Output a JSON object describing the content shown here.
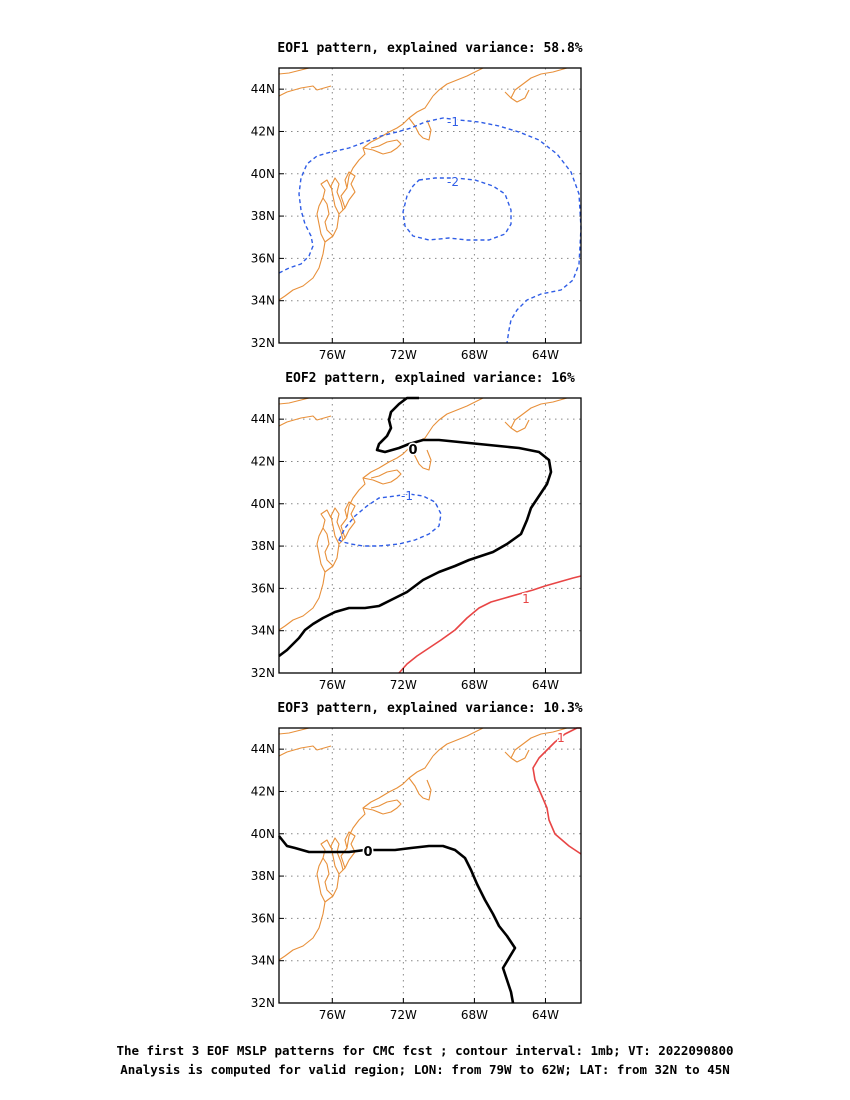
{
  "figure": {
    "caption_line1": "The first 3 EOF MSLP patterns for CMC fcst ; contour interval: 1mb; VT: 2022090800",
    "caption_line2": "Analysis is computed for valid region; LON: from 79W to 62W; LAT: from 32N to 45N"
  },
  "colors": {
    "coastline": "#e8903a",
    "negative_contour": "#2f5de6",
    "zero_contour": "#000000",
    "positive_contour": "#e84545",
    "grid": "#888888"
  },
  "chart_data": [
    {
      "type": "contour-map",
      "title": "EOF1 pattern, explained variance: 58.8%",
      "xlim": [
        -79,
        -62
      ],
      "ylim": [
        32,
        45
      ],
      "x_ticks": [
        "76W",
        "72W",
        "68W",
        "64W"
      ],
      "y_ticks": [
        "32N",
        "34N",
        "36N",
        "38N",
        "40N",
        "42N",
        "44N"
      ],
      "grid": true,
      "contours": [
        {
          "label": "-1",
          "value": -1,
          "style": "dashed",
          "color": "#2f5de6"
        },
        {
          "label": "-2",
          "value": -2,
          "style": "dashed",
          "color": "#2f5de6"
        }
      ]
    },
    {
      "type": "contour-map",
      "title": "EOF2 pattern, explained variance: 16%",
      "xlim": [
        -79,
        -62
      ],
      "ylim": [
        32,
        45
      ],
      "x_ticks": [
        "76W",
        "72W",
        "68W",
        "64W"
      ],
      "y_ticks": [
        "32N",
        "34N",
        "36N",
        "38N",
        "40N",
        "42N",
        "44N"
      ],
      "grid": true,
      "contours": [
        {
          "label": "-1",
          "value": -1,
          "style": "dashed",
          "color": "#2f5de6"
        },
        {
          "label": "0",
          "value": 0,
          "style": "solid-bold",
          "color": "#000000"
        },
        {
          "label": "1",
          "value": 1,
          "style": "solid",
          "color": "#e84545"
        }
      ]
    },
    {
      "type": "contour-map",
      "title": "EOF3 pattern, explained variance: 10.3%",
      "xlim": [
        -79,
        -62
      ],
      "ylim": [
        32,
        45
      ],
      "x_ticks": [
        "76W",
        "72W",
        "68W",
        "64W"
      ],
      "y_ticks": [
        "32N",
        "34N",
        "36N",
        "38N",
        "40N",
        "42N",
        "44N"
      ],
      "grid": true,
      "contours": [
        {
          "label": "0",
          "value": 0,
          "style": "solid-bold",
          "color": "#000000"
        },
        {
          "label": "1",
          "value": 1,
          "style": "solid",
          "color": "#e84545"
        }
      ]
    }
  ]
}
